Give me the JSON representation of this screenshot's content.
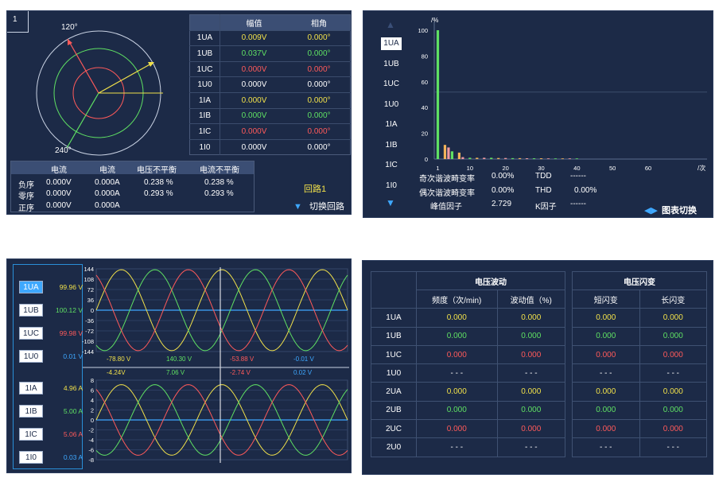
{
  "colors": {
    "panel_bg": "#1c2a47",
    "yellow": "#f0e04a",
    "green": "#5fe063",
    "red": "#ff5a5a",
    "white": "#ffffff",
    "blue": "#3ea8ff"
  },
  "phasor_panel": {
    "tag": "1",
    "angle_120": "120°",
    "angle_240": "240°",
    "table_headers": [
      "幅值",
      "相角"
    ],
    "rows": [
      {
        "name": "1UA",
        "amp": "0.009V",
        "phase": "0.000°",
        "color": "yellow"
      },
      {
        "name": "1UB",
        "amp": "0.037V",
        "phase": "0.000°",
        "color": "green"
      },
      {
        "name": "1UC",
        "amp": "0.000V",
        "phase": "0.000°",
        "color": "red"
      },
      {
        "name": "1U0",
        "amp": "0.000V",
        "phase": "0.000°",
        "color": "white"
      },
      {
        "name": "1IA",
        "amp": "0.000V",
        "phase": "0.000°",
        "color": "yellow"
      },
      {
        "name": "1IB",
        "amp": "0.000V",
        "phase": "0.000°",
        "color": "green"
      },
      {
        "name": "1IC",
        "amp": "0.000V",
        "phase": "0.000°",
        "color": "red"
      },
      {
        "name": "1I0",
        "amp": "0.000V",
        "phase": "0.000°",
        "color": "white"
      }
    ],
    "unbalance_headers": [
      "电流",
      "电流",
      "电压不平衡",
      "电流不平衡"
    ],
    "unbalance_rows": [
      {
        "label": "负序",
        "v1": "0.000V",
        "v2": "0.000A",
        "v3": "0.238 %",
        "v4": "0.238 %"
      },
      {
        "label": "零序",
        "v1": "0.000V",
        "v2": "0.000A",
        "v3": "0.293 %",
        "v4": "0.293 %"
      },
      {
        "label": "正序",
        "v1": "0.000V",
        "v2": "0.000A",
        "v3": "",
        "v4": ""
      }
    ],
    "loop_label": "回路1",
    "switch_loop": "切换回路"
  },
  "harmonic_panel": {
    "channels": [
      "1UA",
      "1UB",
      "1UC",
      "1U0",
      "1IA",
      "1IB",
      "1IC",
      "1I0"
    ],
    "selected_channel": "1UA",
    "stats": {
      "odd_label": "奇次谐波畸变率",
      "odd_value": "0.00%",
      "even_label": "偶次谐波畸变率",
      "even_value": "0.00%",
      "crest_label": "峰值因子",
      "crest_value": "2.729",
      "tdd_label": "TDD",
      "tdd_value": "------",
      "thd_label": "THD",
      "thd_value": "0.00%",
      "k_label": "K因子",
      "k_value": "------"
    },
    "chart_switch": "图表切换",
    "chart_data": {
      "type": "bar",
      "ylabel": "/%",
      "xlabel": "/次",
      "ylim": [
        0,
        100
      ],
      "yticks": [
        0,
        20,
        40,
        60,
        80,
        100
      ],
      "xticks": [
        1,
        10,
        20,
        30,
        40,
        50,
        60
      ],
      "reference_line": 52,
      "bars": [
        {
          "order": 1,
          "value": 100,
          "color": "green"
        },
        {
          "order": 3,
          "value": 11,
          "color": "orange"
        },
        {
          "order": 4,
          "value": 9,
          "color": "pink"
        },
        {
          "order": 5,
          "value": 6,
          "color": "green"
        },
        {
          "order": 7,
          "value": 5,
          "color": "orange"
        },
        {
          "order": 8,
          "value": 1.5,
          "color": "pink"
        },
        {
          "order": 10,
          "value": 1,
          "color": "green"
        },
        {
          "order": 12,
          "value": 1,
          "color": "orange"
        },
        {
          "order": 14,
          "value": 1,
          "color": "pink"
        },
        {
          "order": 16,
          "value": 1,
          "color": "green"
        },
        {
          "order": 18,
          "value": 0.8,
          "color": "orange"
        },
        {
          "order": 20,
          "value": 0.8,
          "color": "pink"
        },
        {
          "order": 22,
          "value": 0.7,
          "color": "green"
        },
        {
          "order": 24,
          "value": 0.7,
          "color": "orange"
        },
        {
          "order": 26,
          "value": 0.6,
          "color": "pink"
        },
        {
          "order": 28,
          "value": 0.6,
          "color": "green"
        },
        {
          "order": 30,
          "value": 0.6,
          "color": "orange"
        },
        {
          "order": 32,
          "value": 0.5,
          "color": "pink"
        },
        {
          "order": 34,
          "value": 0.5,
          "color": "green"
        },
        {
          "order": 36,
          "value": 0.5,
          "color": "orange"
        },
        {
          "order": 38,
          "value": 0.5,
          "color": "pink"
        },
        {
          "order": 40,
          "value": 0.5,
          "color": "green"
        }
      ]
    }
  },
  "waveform_panel": {
    "channels": [
      {
        "name": "1UA",
        "value": "99.96 V",
        "color": "yellow",
        "selected": true
      },
      {
        "name": "1UB",
        "value": "100.12 V",
        "color": "green",
        "selected": false
      },
      {
        "name": "1UC",
        "value": "99.98 V",
        "color": "red",
        "selected": false
      },
      {
        "name": "1U0",
        "value": "0.01 V",
        "color": "blue",
        "selected": false
      },
      {
        "name": "1IA",
        "value": "4.96 A",
        "color": "yellow",
        "selected": false
      },
      {
        "name": "1IB",
        "value": "5.00 A",
        "color": "green",
        "selected": false
      },
      {
        "name": "1IC",
        "value": "5.06 A",
        "color": "red",
        "selected": false
      },
      {
        "name": "1I0",
        "value": "0.03 A",
        "color": "blue",
        "selected": false
      }
    ],
    "voltage_chart": {
      "yticks": [
        "144",
        "108",
        "72",
        "36",
        "0",
        "-36",
        "-72",
        "-108",
        "-144"
      ],
      "cursor_values": [
        {
          "text": "-78.80 V",
          "color": "yellow"
        },
        {
          "text": "140.30 V",
          "color": "green"
        },
        {
          "text": "-53.88 V",
          "color": "red"
        },
        {
          "text": "-0.01 V",
          "color": "blue"
        }
      ]
    },
    "current_chart": {
      "yticks": [
        "8",
        "6",
        "4",
        "2",
        "0",
        "-2",
        "-4",
        "-6",
        "-8"
      ],
      "cursor_values": [
        {
          "text": "-4.24V",
          "color": "yellow"
        },
        {
          "text": "7.06 V",
          "color": "green"
        },
        {
          "text": "-2.74 V",
          "color": "red"
        },
        {
          "text": "0.02 V",
          "color": "blue"
        }
      ]
    },
    "chart_data": [
      {
        "type": "line",
        "name": "voltage",
        "ylim": [
          -144,
          144
        ],
        "amplitude": 141,
        "cycles": 2.5,
        "series": [
          {
            "phase_deg": 0,
            "color": "yellow"
          },
          {
            "phase_deg": 120,
            "color": "green"
          },
          {
            "phase_deg": 240,
            "color": "red"
          }
        ],
        "zero_line": "blue"
      },
      {
        "type": "line",
        "name": "current",
        "ylim": [
          -8,
          8
        ],
        "amplitude": 7.1,
        "cycles": 2.5,
        "series": [
          {
            "phase_deg": 0,
            "color": "yellow"
          },
          {
            "phase_deg": 120,
            "color": "green"
          },
          {
            "phase_deg": 240,
            "color": "red"
          }
        ],
        "zero_line": "blue"
      }
    ]
  },
  "flicker_panel": {
    "group1_title": "电压波动",
    "group2_title": "电压闪变",
    "col_freq": "频度（次/min)",
    "col_fluct": "波动值（%)",
    "col_short": "短闪变",
    "col_long": "长闪变",
    "rows": [
      {
        "name": "1UA",
        "values": [
          "0.000",
          "0.000",
          "0.000",
          "0.000"
        ],
        "color": "yellow"
      },
      {
        "name": "1UB",
        "values": [
          "0.000",
          "0.000",
          "0.000",
          "0.000"
        ],
        "color": "green"
      },
      {
        "name": "1UC",
        "values": [
          "0.000",
          "0.000",
          "0.000",
          "0.000"
        ],
        "color": "red"
      },
      {
        "name": "1U0",
        "values": [
          "- - -",
          "- - -",
          "- - -",
          "- - -"
        ],
        "color": "white"
      },
      {
        "name": "2UA",
        "values": [
          "0.000",
          "0.000",
          "0.000",
          "0.000"
        ],
        "color": "yellow"
      },
      {
        "name": "2UB",
        "values": [
          "0.000",
          "0.000",
          "0.000",
          "0.000"
        ],
        "color": "green"
      },
      {
        "name": "2UC",
        "values": [
          "0.000",
          "0.000",
          "0.000",
          "0.000"
        ],
        "color": "red"
      },
      {
        "name": "2U0",
        "values": [
          "- - -",
          "- - -",
          "- - -",
          "- - -"
        ],
        "color": "white"
      }
    ]
  }
}
